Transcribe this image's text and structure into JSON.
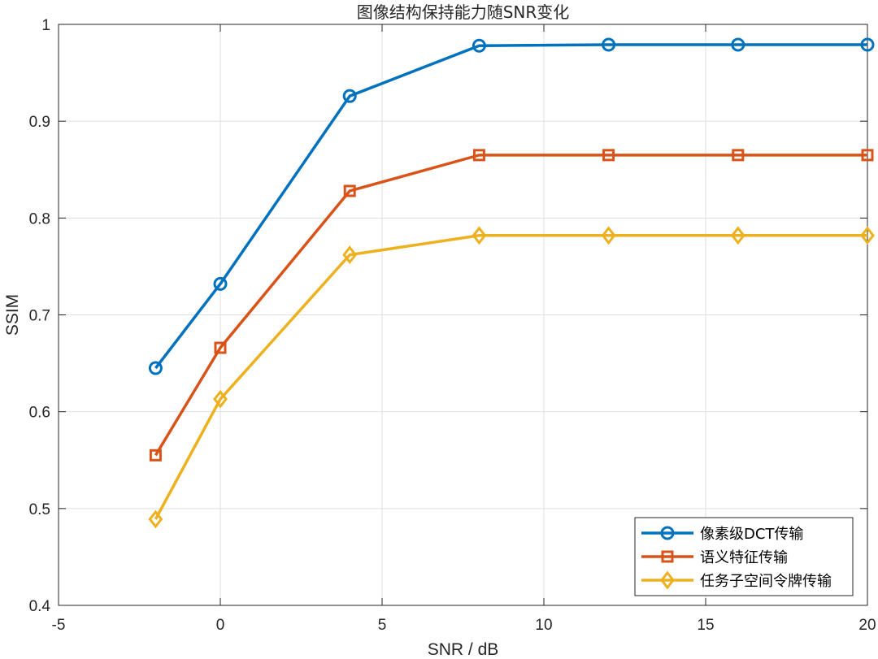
{
  "chart_data": {
    "type": "line",
    "title": "图像结构保持能力随SNR变化",
    "xlabel": "SNR / dB",
    "ylabel": "SSIM",
    "xlim": [
      -5,
      20
    ],
    "ylim": [
      0.4,
      1.0
    ],
    "xticks": [
      -5,
      0,
      5,
      10,
      15,
      20
    ],
    "yticks": [
      0.4,
      0.5,
      0.6,
      0.7,
      0.8,
      0.9,
      1.0
    ],
    "xtick_labels": [
      "-5",
      "0",
      "5",
      "10",
      "15",
      "20"
    ],
    "ytick_labels": [
      "0.4",
      "0.5",
      "0.6",
      "0.7",
      "0.8",
      "0.9",
      "1"
    ],
    "grid": true,
    "legend_position": "bottom-right",
    "x": [
      -2,
      0,
      4,
      8,
      12,
      16,
      20
    ],
    "series": [
      {
        "name": "像素级DCT传输",
        "marker": "circle",
        "color": "#0072BD",
        "values": [
          0.645,
          0.732,
          0.926,
          0.978,
          0.979,
          0.979,
          0.979
        ]
      },
      {
        "name": "语义特征传输",
        "marker": "square",
        "color": "#D95319",
        "values": [
          0.555,
          0.666,
          0.828,
          0.865,
          0.865,
          0.865,
          0.865
        ]
      },
      {
        "name": "任务子空间令牌传输",
        "marker": "diamond",
        "color": "#EDB120",
        "values": [
          0.489,
          0.613,
          0.762,
          0.782,
          0.782,
          0.782,
          0.782
        ]
      }
    ]
  }
}
